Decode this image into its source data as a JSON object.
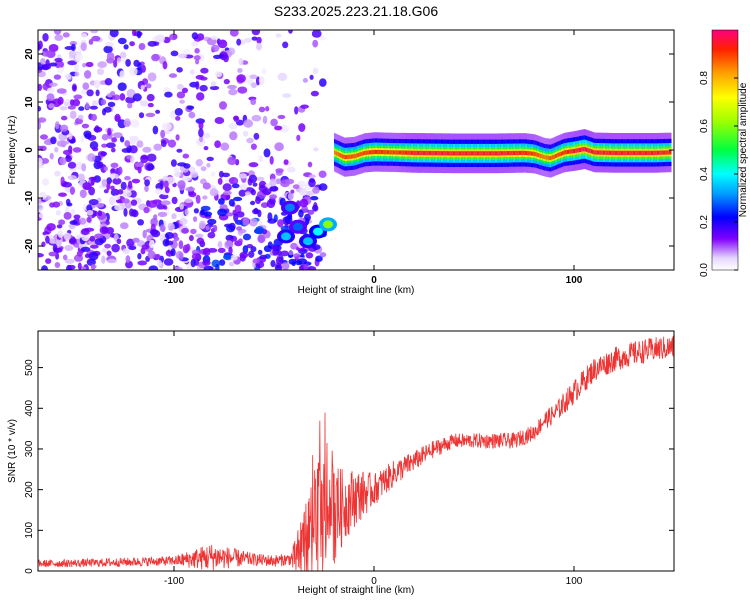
{
  "figure": {
    "title": "S233.2025.223.21.18.G06"
  },
  "chart_data": [
    {
      "type": "heatmap",
      "title": "S233.2025.223.21.18.G06",
      "xlabel": "Height of straight line (km)",
      "ylabel": "Frequency (Hz)",
      "xlim": [
        -168,
        150
      ],
      "ylim": [
        -25,
        25
      ],
      "x_ticks": [
        -100,
        0,
        100
      ],
      "x_tick_labels": [
        "-100",
        "0",
        "100"
      ],
      "y_ticks": [
        -20,
        -10,
        0,
        10,
        20
      ],
      "y_tick_labels": [
        "-20",
        "-10",
        "0",
        "10",
        "20"
      ],
      "colorbar": {
        "label": "Normalized spectral amplitude",
        "range": [
          0,
          1
        ],
        "ticks": [
          0.0,
          0.2,
          0.4,
          0.6,
          0.8
        ],
        "tick_labels": [
          "0.0",
          "0.2",
          "0.4",
          "0.6",
          "0.8"
        ]
      },
      "ridge": {
        "description": "frequency of peak amplitude vs height",
        "x": [
          -20,
          -15,
          -10,
          -5,
          0,
          10,
          20,
          40,
          60,
          75,
          80,
          85,
          88,
          92,
          95,
          100,
          105,
          110,
          120,
          140,
          148
        ],
        "y": [
          -0.5,
          -1.5,
          -1.3,
          -0.6,
          -0.4,
          -0.5,
          -0.6,
          -0.7,
          -0.7,
          -0.6,
          -0.8,
          -1.5,
          -1.7,
          -1.0,
          -0.5,
          -0.2,
          0.2,
          -0.5,
          -0.6,
          -0.6,
          -0.5
        ],
        "amplitude": [
          0.85,
          0.9,
          0.88,
          0.9,
          0.92,
          0.9,
          0.95,
          0.95,
          0.95,
          0.93,
          0.9,
          0.85,
          0.88,
          0.9,
          0.92,
          0.95,
          0.97,
          0.95,
          0.95,
          0.95,
          0.93
        ]
      },
      "low_altitude_clusters": [
        {
          "x": -42,
          "y": -12,
          "amplitude": 0.3
        },
        {
          "x": -38,
          "y": -16,
          "amplitude": 0.28
        },
        {
          "x": -33,
          "y": -19,
          "amplitude": 0.35
        },
        {
          "x": -28,
          "y": -17,
          "amplitude": 0.4
        },
        {
          "x": -23,
          "y": -15.5,
          "amplitude": 0.6
        },
        {
          "x": -44,
          "y": -18,
          "amplitude": 0.35
        }
      ],
      "noise_region": {
        "x_range": [
          -168,
          -25
        ],
        "amplitude_range": [
          0.02,
          0.2
        ]
      }
    },
    {
      "type": "line",
      "xlabel": "Height of straight line (km)",
      "ylabel": "SNR (10 * v/v)",
      "xlim": [
        -168,
        150
      ],
      "ylim": [
        0,
        590
      ],
      "x_ticks": [
        -100,
        0,
        100
      ],
      "x_tick_labels": [
        "-100",
        "0",
        "100"
      ],
      "y_ticks": [
        0,
        100,
        200,
        300,
        400,
        500
      ],
      "y_tick_labels": [
        "0",
        "100",
        "200",
        "300",
        "400",
        "500"
      ],
      "color": "#ee3333",
      "trend": {
        "x": [
          -168,
          -140,
          -100,
          -80,
          -50,
          -40,
          -35,
          -30,
          -25,
          -20,
          -10,
          0,
          10,
          20,
          30,
          40,
          60,
          70,
          80,
          85,
          90,
          100,
          110,
          120,
          130,
          140,
          150
        ],
        "y": [
          18,
          20,
          25,
          35,
          25,
          30,
          60,
          120,
          130,
          140,
          180,
          200,
          240,
          270,
          300,
          320,
          320,
          320,
          340,
          370,
          385,
          440,
          495,
          520,
          535,
          545,
          550
        ]
      },
      "noise_envelope": {
        "x": [
          -168,
          -100,
          -82,
          -60,
          -42,
          -35,
          -25,
          -15,
          0,
          20,
          40,
          80,
          100,
          150
        ],
        "amplitude": [
          9,
          12,
          35,
          15,
          15,
          100,
          160,
          90,
          40,
          25,
          18,
          20,
          30,
          30
        ]
      }
    }
  ]
}
